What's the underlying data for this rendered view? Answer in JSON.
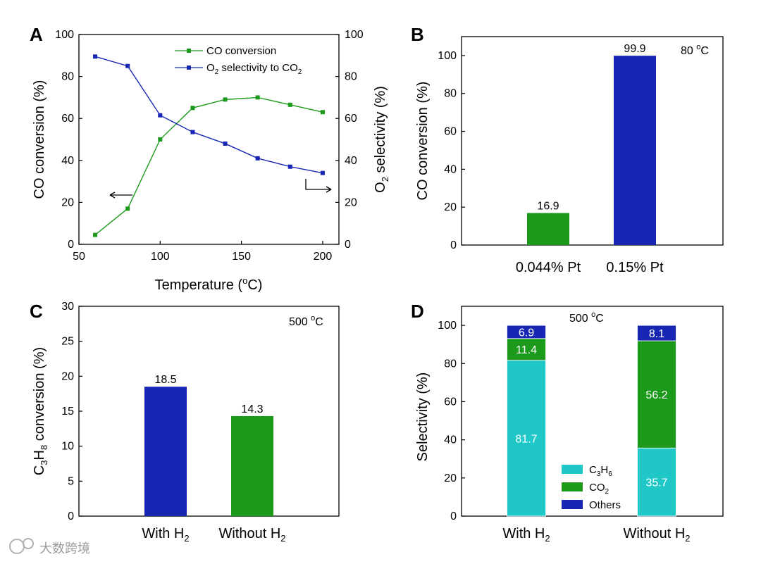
{
  "colors": {
    "green": "#1b9a1b",
    "blue": "#1727b4",
    "cyan": "#20c7c7",
    "axis": "#000000"
  },
  "watermark": "大数跨境",
  "chart_data": [
    {
      "panel": "A",
      "type": "line",
      "x": [
        60,
        80,
        100,
        120,
        140,
        160,
        180,
        200
      ],
      "xlabel": "Temperature (°C)",
      "ylabel": "CO conversion (%)",
      "y2label": "O2 selectivity (%)",
      "xlim": [
        50,
        210
      ],
      "ylim": [
        0,
        100
      ],
      "y2lim": [
        0,
        100
      ],
      "xticks": [
        50,
        100,
        150,
        200
      ],
      "yticks": [
        0,
        20,
        40,
        60,
        80,
        100
      ],
      "series": [
        {
          "name": "CO conversion",
          "axis": "left",
          "color": "#1b9a1b",
          "values": [
            4.5,
            17,
            50,
            65,
            69,
            70,
            66.5,
            63
          ]
        },
        {
          "name": "O2 selectivity to CO2",
          "axis": "right",
          "color": "#1727b4",
          "values": [
            89.5,
            85,
            61.5,
            53.5,
            48,
            41,
            37,
            34
          ]
        }
      ],
      "legend_position": "top-right"
    },
    {
      "panel": "B",
      "type": "bar",
      "categories": [
        "0.044% Pt",
        "0.15% Pt"
      ],
      "values": [
        16.9,
        99.9
      ],
      "colors": [
        "#1b9a1b",
        "#1727b4"
      ],
      "ylabel": "CO conversion (%)",
      "ylim": [
        0,
        110
      ],
      "yticks": [
        0,
        20,
        40,
        60,
        80,
        100
      ],
      "annotation": "80 °C"
    },
    {
      "panel": "C",
      "type": "bar",
      "categories": [
        "With H2",
        "Without H2"
      ],
      "values": [
        18.5,
        14.3
      ],
      "colors": [
        "#1727b4",
        "#1b9a1b"
      ],
      "ylabel": "C3H8 conversion (%)",
      "ylim": [
        0,
        30
      ],
      "yticks": [
        0,
        5,
        10,
        15,
        20,
        25,
        30
      ],
      "annotation": "500 °C"
    },
    {
      "panel": "D",
      "type": "bar",
      "stacked": true,
      "categories": [
        "With H2",
        "Without H2"
      ],
      "series": [
        {
          "name": "C3H6",
          "color": "#20c7c7",
          "values": [
            81.7,
            35.7
          ]
        },
        {
          "name": "CO2",
          "color": "#1b9a1b",
          "values": [
            11.4,
            56.2
          ]
        },
        {
          "name": "Others",
          "color": "#1727b4",
          "values": [
            6.9,
            8.1
          ]
        }
      ],
      "ylabel": "Selectivity (%)",
      "ylim": [
        0,
        110
      ],
      "yticks": [
        0,
        20,
        40,
        60,
        80,
        100
      ],
      "annotation": "500 °C",
      "legend_position": "bottom-center"
    }
  ]
}
